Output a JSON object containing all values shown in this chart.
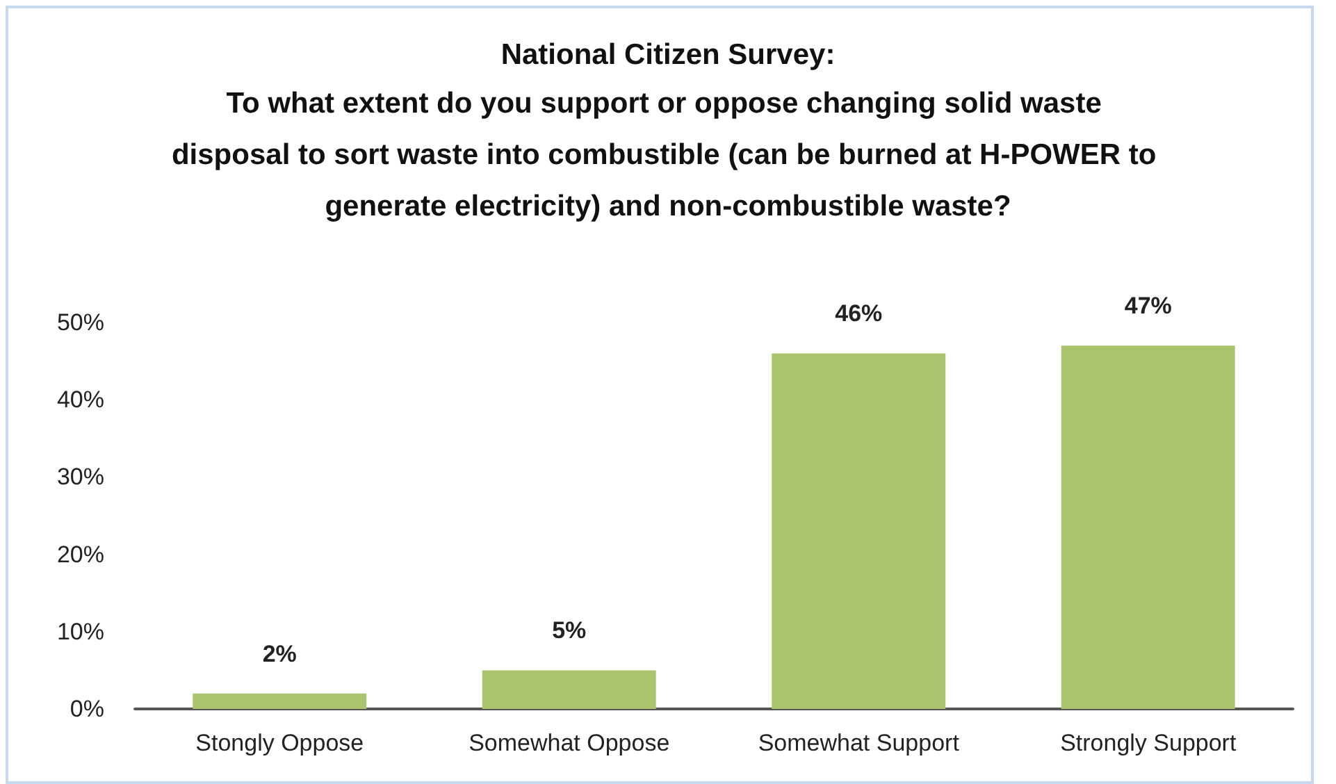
{
  "chart_data": {
    "type": "bar",
    "title": "National Citizen Survey:",
    "subtitle": "To what extent do you support or oppose changing solid waste disposal to sort waste into combustible (can be burned at H-POWER to generate electricity) and non-combustible waste?",
    "categories": [
      "Stongly Oppose",
      "Somewhat Oppose",
      "Somewhat Support",
      "Strongly Support"
    ],
    "values": [
      2,
      5,
      46,
      47
    ],
    "value_labels": [
      "2%",
      "5%",
      "46%",
      "47%"
    ],
    "color": "#a9c46c",
    "ylim": [
      0,
      50
    ],
    "yticks": [
      {
        "value": 0,
        "label": "0%"
      },
      {
        "value": 10,
        "label": "10%"
      },
      {
        "value": 20,
        "label": "20%"
      },
      {
        "value": 30,
        "label": "30%"
      },
      {
        "value": 40,
        "label": "40%"
      },
      {
        "value": 50,
        "label": "50%"
      }
    ],
    "grid": false
  }
}
